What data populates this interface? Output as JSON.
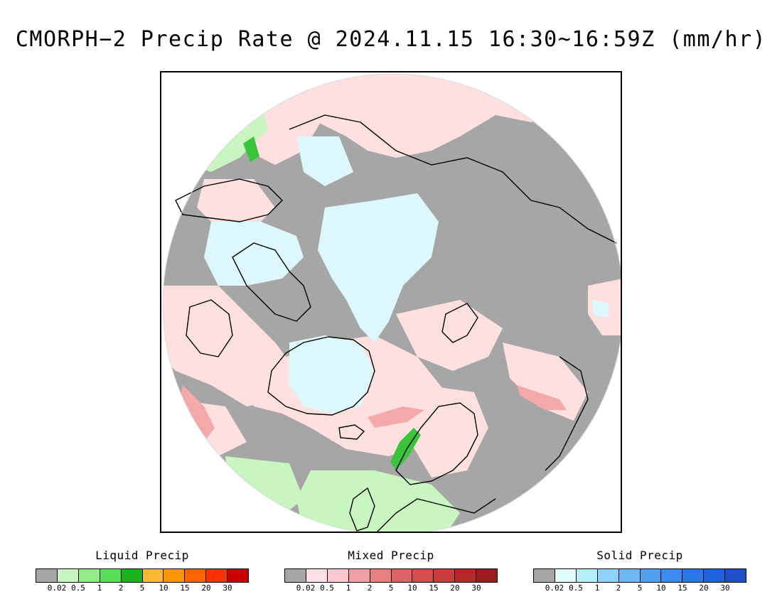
{
  "title": "CMORPH−2 Precip Rate @ 2024.11.15 16:30~16:59Z (mm/hr)",
  "map": {
    "projection": "north-polar-stereographic",
    "colors": {
      "no_precip": "#a6a6a6",
      "liquid_light": "#c8f5c0",
      "liquid_mid": "#94ec88",
      "liquid_strong": "#3bc43b",
      "mixed_light": "#ffe0e0",
      "mixed_mid": "#f4a8a8",
      "mixed_strong": "#e07272",
      "solid_light": "#dcf8fc",
      "solid_mid": "#b4eef8",
      "coast": "#000000",
      "outside": "#ffffff"
    }
  },
  "legends": [
    {
      "title": "Liquid Precip",
      "colors": [
        "#a6a6a6",
        "#c8f5c0",
        "#94ec88",
        "#55e055",
        "#1eb21e",
        "#fdb935",
        "#fc9500",
        "#fc6400",
        "#fc3200",
        "#c80000"
      ],
      "ticks": [
        "0.02",
        "0.5",
        "1",
        "2",
        "5",
        "10",
        "15",
        "20",
        "30"
      ]
    },
    {
      "title": "Mixed Precip",
      "colors": [
        "#a6a6a6",
        "#ffe0e6",
        "#fcc8cd",
        "#f0a0a5",
        "#e88080",
        "#de6464",
        "#d44e4e",
        "#c83c3c",
        "#b42828",
        "#9b1e1e"
      ],
      "ticks": [
        "0.02",
        "0.5",
        "1",
        "2",
        "5",
        "10",
        "15",
        "20",
        "30"
      ]
    },
    {
      "title": "Solid Precip",
      "colors": [
        "#a6a6a6",
        "#e0fcfc",
        "#b4f0fa",
        "#8cd2fa",
        "#6eb9f5",
        "#50a0f0",
        "#3c8cf0",
        "#2878e6",
        "#1e64dc",
        "#1e50c8"
      ],
      "ticks": [
        "0.02",
        "0.5",
        "1",
        "2",
        "5",
        "10",
        "15",
        "20",
        "30"
      ]
    }
  ]
}
